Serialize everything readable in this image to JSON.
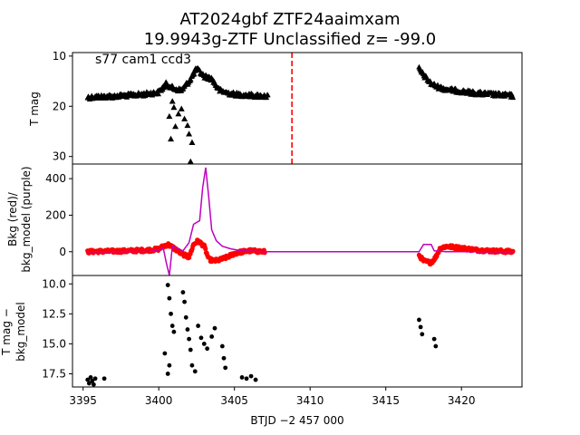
{
  "title": {
    "line1": "AT2024gbf  ZTF24aaimxam",
    "line2": "19.9943g-ZTF Unclassified z= -99.0"
  },
  "shared_xlabel": "BTJD −2 457 000",
  "colors": {
    "tmag": "#000000",
    "bkg": "#ff0000",
    "bkg_model": "#bf00bf",
    "event_line": "#ff0000",
    "axes": "#000000"
  },
  "chart_data": [
    {
      "type": "scatter",
      "panel": "top",
      "ylabel": "T mag",
      "annotation": "s77 cam1 ccd3",
      "xlim": [
        3394.3,
        3424.0
      ],
      "ylim": [
        31.5,
        9.3
      ],
      "y_inverted": true,
      "xticks": [],
      "yticks": [
        10,
        20,
        30
      ],
      "ytick_labels": [
        "10",
        "20",
        "30"
      ],
      "event_time": 3408.8,
      "marker": "triangle",
      "series": [
        {
          "segments": [
            {
              "x": [
                3395.3,
                3396.0,
                3397.0,
                3398.0,
                3399.0,
                3400.0,
                3400.5,
                3401.0,
                3401.5,
                3402.0,
                3402.5,
                3403.0,
                3403.5,
                3404.0,
                3404.5,
                3405.0,
                3405.5,
                3406.0,
                3406.5,
                3407.2
              ],
              "y": [
                18.2,
                18.1,
                18.0,
                17.8,
                17.6,
                17.2,
                15.5,
                16.5,
                16.8,
                15.0,
                12.5,
                14.0,
                14.5,
                16.8,
                17.3,
                17.6,
                17.7,
                17.8,
                17.9,
                18.0
              ]
            },
            {
              "x": [
                3417.2,
                3417.5,
                3418.0,
                3418.5,
                3419.0,
                3420.0,
                3421.0,
                3422.0,
                3423.0,
                3423.4
              ],
              "y": [
                12.5,
                13.8,
                15.5,
                16.2,
                16.6,
                17.0,
                17.4,
                17.6,
                17.8,
                17.9
              ]
            }
          ],
          "outliers": {
            "x": [
              3400.7,
              3400.8,
              3401.1,
              3401.3,
              3401.7,
              3401.9,
              3402.0,
              3402.2,
              3400.9,
              3401.5,
              3402.1,
              3401.0
            ],
            "y": [
              22.0,
              26.5,
              24.0,
              21.5,
              22.5,
              23.8,
              25.5,
              27.2,
              19.0,
              20.5,
              31.0,
              20.2
            ]
          }
        }
      ]
    },
    {
      "type": "line",
      "panel": "middle",
      "ylabel_line1": "Bkg (red)/",
      "ylabel_line2": "bkg_model (purple)",
      "xlim": [
        3394.3,
        3424.0
      ],
      "ylim": [
        -130,
        480
      ],
      "xticks": [],
      "yticks": [
        0,
        200,
        400
      ],
      "ytick_labels": [
        "0",
        "200",
        "400"
      ],
      "series": [
        {
          "name": "bkg",
          "style": "points",
          "segments": [
            {
              "x": [
                3395.3,
                3396.0,
                3397.0,
                3398.0,
                3399.0,
                3399.5,
                3400.0,
                3400.3,
                3400.6,
                3401.0,
                3401.5,
                3402.0,
                3402.3,
                3402.6,
                3403.0,
                3403.3,
                3403.6,
                3404.0,
                3404.5,
                3405.0,
                3405.5,
                3406.0,
                3406.5,
                3407.0
              ],
              "y": [
                0,
                2,
                3,
                5,
                8,
                10,
                15,
                30,
                40,
                20,
                -10,
                -30,
                40,
                60,
                30,
                -40,
                -50,
                -45,
                -30,
                -10,
                0,
                5,
                3,
                0
              ]
            },
            {
              "x": [
                3417.2,
                3417.5,
                3418.0,
                3418.3,
                3418.6,
                3419.0,
                3420.0,
                3421.0,
                3422.0,
                3423.0,
                3423.4
              ],
              "y": [
                -20,
                -50,
                -60,
                -30,
                20,
                30,
                20,
                10,
                5,
                2,
                0
              ]
            }
          ]
        },
        {
          "name": "bkg_model",
          "style": "line",
          "x": [
            3395.3,
            3399.5,
            3400.0,
            3400.3,
            3400.5,
            3400.7,
            3400.9,
            3401.2,
            3401.6,
            3402.0,
            3402.3,
            3402.5,
            3402.7,
            3402.9,
            3403.1,
            3403.3,
            3403.5,
            3403.8,
            3404.2,
            3404.8,
            3405.5,
            3407.0,
            3417.2,
            3417.5,
            3418.0,
            3418.2,
            3419.0,
            3420.5,
            3423.4
          ],
          "y": [
            0,
            2,
            10,
            20,
            -60,
            -130,
            30,
            20,
            5,
            50,
            150,
            160,
            170,
            350,
            460,
            300,
            120,
            60,
            30,
            15,
            5,
            0,
            0,
            40,
            40,
            5,
            0,
            0,
            0
          ]
        }
      ]
    },
    {
      "type": "scatter",
      "panel": "bottom",
      "ylabel_line1": "T mag −",
      "ylabel_line2": "bkg_model",
      "xlim": [
        3394.3,
        3424.0
      ],
      "ylim": [
        18.6,
        9.3
      ],
      "y_inverted": true,
      "xticks": [
        3395,
        3400,
        3405,
        3410,
        3415,
        3420
      ],
      "xtick_labels": [
        "3395",
        "3400",
        "3405",
        "3410",
        "3415",
        "3420"
      ],
      "yticks": [
        10.0,
        12.5,
        15.0,
        17.5
      ],
      "ytick_labels": [
        "10.0",
        "12.5",
        "15.0",
        "17.5"
      ],
      "marker": "circle",
      "points": {
        "x": [
          3395.3,
          3395.4,
          3395.5,
          3395.6,
          3395.7,
          3395.8,
          3396.4,
          3400.4,
          3400.6,
          3400.7,
          3400.8,
          3400.9,
          3401.0,
          3400.7,
          3400.6,
          3401.6,
          3401.7,
          3401.8,
          3401.9,
          3402.0,
          3402.1,
          3402.2,
          3402.4,
          3402.6,
          3402.8,
          3403.0,
          3403.2,
          3403.5,
          3403.7,
          3404.2,
          3404.3,
          3404.4,
          3405.5,
          3405.8,
          3406.1,
          3406.4,
          3417.2,
          3417.3,
          3417.4,
          3418.2,
          3418.3
        ],
        "y": [
          18.0,
          18.3,
          17.8,
          18.1,
          18.4,
          17.9,
          17.9,
          15.8,
          10.1,
          11.2,
          12.5,
          13.5,
          14.0,
          16.8,
          17.5,
          10.7,
          11.5,
          12.8,
          13.8,
          14.6,
          15.5,
          16.8,
          17.3,
          13.5,
          14.5,
          15.0,
          15.4,
          14.4,
          13.7,
          15.2,
          16.2,
          17.0,
          17.8,
          17.9,
          17.7,
          18.0,
          13.0,
          13.6,
          14.2,
          14.6,
          15.2
        ]
      }
    }
  ]
}
